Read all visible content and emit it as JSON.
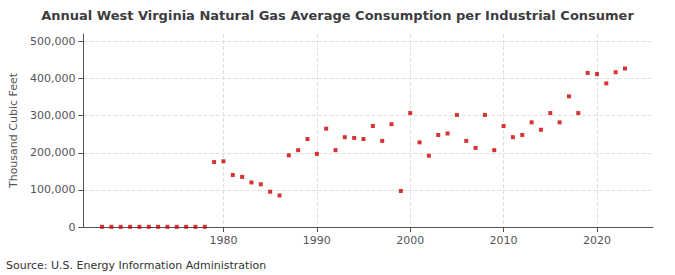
{
  "chart_data": {
    "type": "scatter",
    "title": "Annual West Virginia Natural Gas Average Consumption per Industrial Consumer",
    "ylabel": "Thousand Cubic Feet",
    "annotations": [
      "Source: U.S. Energy Information Administration"
    ],
    "color": "#cc0000",
    "marker": "square",
    "grid": true,
    "x": [
      1967,
      1968,
      1969,
      1970,
      1971,
      1972,
      1973,
      1974,
      1975,
      1976,
      1977,
      1978,
      1979,
      1980,
      1981,
      1982,
      1983,
      1984,
      1985,
      1986,
      1987,
      1988,
      1989,
      1990,
      1991,
      1992,
      1993,
      1994,
      1995,
      1996,
      1997,
      1998,
      1999,
      2000,
      2001,
      2002,
      2003,
      2004,
      2005,
      2006,
      2007,
      2008,
      2009,
      2010,
      2011,
      2012,
      2013,
      2014,
      2015,
      2016,
      2017,
      2018,
      2019,
      2020,
      2021,
      2022,
      2023
    ],
    "values": [
      500,
      500,
      500,
      500,
      500,
      500,
      500,
      500,
      500,
      500,
      500,
      500,
      175000,
      177000,
      140000,
      135000,
      120000,
      115000,
      95000,
      85000,
      193000,
      207000,
      237000,
      197000,
      265000,
      207000,
      242000,
      240000,
      237000,
      272000,
      232000,
      277000,
      97000,
      307000,
      228000,
      192000,
      248000,
      252000,
      302000,
      232000,
      213000,
      302000,
      207000,
      272000,
      242000,
      248000,
      282000,
      262000,
      307000,
      282000,
      352000,
      307000,
      415000,
      412000,
      387000,
      417000,
      427000
    ],
    "xlim": [
      1965,
      2026
    ],
    "xticks": [
      1980,
      1990,
      2000,
      2010,
      2020
    ],
    "ylim": [
      0,
      520000
    ],
    "yticks": [
      0,
      {
        "value": 100000,
        "label": "100,000"
      },
      {
        "value": 200000,
        "label": "200,000"
      },
      {
        "value": 300000,
        "label": "300,000"
      },
      {
        "value": 400000,
        "label": "400,000"
      },
      {
        "value": 500000,
        "label": "500,000"
      }
    ]
  }
}
